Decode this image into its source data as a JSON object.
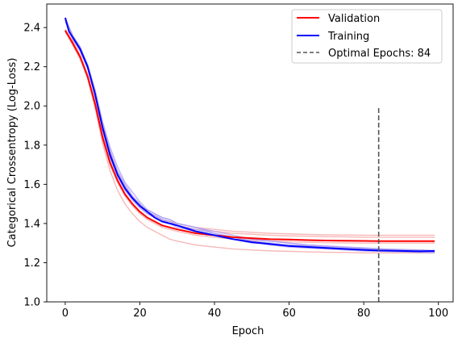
{
  "chart_data": {
    "type": "line",
    "xlabel": "Epoch",
    "ylabel": "Categorical Crossentropy (Log-Loss)",
    "xlim": [
      -4.95,
      103.95
    ],
    "ylim": [
      1.0,
      2.52
    ],
    "xticks": [
      0,
      20,
      40,
      60,
      80,
      100
    ],
    "yticks": [
      1.0,
      1.2,
      1.4,
      1.6,
      1.8,
      2.0,
      2.2,
      2.4
    ],
    "xtick_labels": [
      "0",
      "20",
      "40",
      "60",
      "80",
      "100"
    ],
    "ytick_labels": [
      "1.0",
      "1.2",
      "1.4",
      "1.6",
      "1.8",
      "2.0",
      "2.2",
      "2.4"
    ],
    "legend_position": "upper right",
    "colors": {
      "validation": "#ff0000",
      "training": "#0000ff",
      "validation_runs": "#f4a0a0",
      "training_runs": "#a898f0",
      "optimal": "#555555"
    },
    "series": [
      {
        "name": "Validation",
        "key": "validation",
        "x": [
          0,
          2,
          4,
          6,
          8,
          10,
          12,
          14,
          16,
          18,
          20,
          22,
          24,
          26,
          28,
          30,
          35,
          40,
          45,
          50,
          55,
          60,
          65,
          70,
          75,
          80,
          84,
          90,
          95,
          99
        ],
        "y": [
          2.385,
          2.32,
          2.25,
          2.15,
          2.01,
          1.84,
          1.71,
          1.62,
          1.55,
          1.5,
          1.46,
          1.43,
          1.41,
          1.39,
          1.38,
          1.37,
          1.35,
          1.34,
          1.33,
          1.325,
          1.32,
          1.318,
          1.315,
          1.313,
          1.312,
          1.311,
          1.31,
          1.31,
          1.31,
          1.31
        ]
      },
      {
        "name": "Training",
        "key": "training",
        "x": [
          0,
          1,
          2,
          4,
          6,
          8,
          10,
          12,
          14,
          16,
          18,
          20,
          22,
          24,
          26,
          28,
          30,
          35,
          40,
          45,
          50,
          55,
          60,
          65,
          70,
          75,
          80,
          84,
          90,
          95,
          99
        ],
        "y": [
          2.45,
          2.38,
          2.35,
          2.29,
          2.2,
          2.06,
          1.89,
          1.75,
          1.65,
          1.58,
          1.53,
          1.49,
          1.46,
          1.43,
          1.41,
          1.4,
          1.39,
          1.36,
          1.34,
          1.32,
          1.305,
          1.295,
          1.285,
          1.28,
          1.275,
          1.27,
          1.265,
          1.262,
          1.26,
          1.258,
          1.26
        ]
      },
      {
        "name": "Optimal Epochs: 84",
        "key": "optimal",
        "style": "dashed",
        "x": [
          84,
          84
        ],
        "y": [
          1.0,
          1.99
        ]
      }
    ],
    "individual_runs": {
      "validation": [
        {
          "x": [
            0,
            2,
            4,
            6,
            8,
            10,
            12,
            14,
            16,
            18,
            20,
            22,
            24,
            26,
            28,
            30,
            35,
            40,
            45,
            50,
            55,
            60,
            65,
            70,
            75,
            80,
            85,
            90,
            95,
            99
          ],
          "y": [
            2.39,
            2.33,
            2.25,
            2.14,
            1.99,
            1.81,
            1.67,
            1.57,
            1.5,
            1.45,
            1.41,
            1.38,
            1.36,
            1.34,
            1.32,
            1.31,
            1.29,
            1.28,
            1.27,
            1.265,
            1.26,
            1.258,
            1.255,
            1.253,
            1.252,
            1.25,
            1.25,
            1.25,
            1.25,
            1.25
          ]
        },
        {
          "x": [
            0,
            2,
            4,
            6,
            8,
            10,
            12,
            14,
            16,
            18,
            20,
            22,
            24,
            26,
            28,
            30,
            35,
            40,
            45,
            50,
            55,
            60,
            65,
            70,
            75,
            80,
            85,
            90,
            95,
            99
          ],
          "y": [
            2.38,
            2.32,
            2.24,
            2.15,
            2.02,
            1.86,
            1.73,
            1.64,
            1.57,
            1.52,
            1.48,
            1.45,
            1.43,
            1.41,
            1.4,
            1.39,
            1.37,
            1.36,
            1.35,
            1.345,
            1.34,
            1.337,
            1.335,
            1.333,
            1.332,
            1.33,
            1.33,
            1.33,
            1.33,
            1.33
          ]
        },
        {
          "x": [
            0,
            2,
            4,
            6,
            8,
            10,
            12,
            14,
            16,
            18,
            20,
            22,
            24,
            26,
            28,
            30,
            35,
            40,
            45,
            50,
            55,
            60,
            65,
            70,
            75,
            80,
            85,
            90,
            95,
            99
          ],
          "y": [
            2.38,
            2.31,
            2.24,
            2.14,
            2.0,
            1.83,
            1.7,
            1.61,
            1.54,
            1.49,
            1.45,
            1.42,
            1.4,
            1.38,
            1.37,
            1.36,
            1.34,
            1.33,
            1.32,
            1.315,
            1.31,
            1.307,
            1.304,
            1.302,
            1.301,
            1.3,
            1.3,
            1.3,
            1.3,
            1.3
          ]
        },
        {
          "x": [
            0,
            2,
            4,
            6,
            8,
            10,
            12,
            14,
            16,
            18,
            20,
            22,
            24,
            26,
            28,
            30,
            35,
            40,
            45,
            50,
            55,
            60,
            65,
            70,
            75,
            80,
            85,
            90,
            95,
            99
          ],
          "y": [
            2.39,
            2.33,
            2.26,
            2.16,
            2.03,
            1.87,
            1.74,
            1.65,
            1.58,
            1.53,
            1.49,
            1.46,
            1.44,
            1.42,
            1.41,
            1.4,
            1.38,
            1.37,
            1.36,
            1.355,
            1.35,
            1.347,
            1.344,
            1.342,
            1.341,
            1.34,
            1.34,
            1.34,
            1.34,
            1.34
          ]
        },
        {
          "x": [
            0,
            2,
            4,
            6,
            8,
            10,
            12,
            14,
            16,
            18,
            20,
            22,
            24,
            26,
            28,
            30,
            35,
            40,
            45,
            50,
            55,
            60,
            65,
            70,
            75,
            80,
            85,
            90,
            95,
            99
          ],
          "y": [
            2.38,
            2.32,
            2.25,
            2.15,
            2.01,
            1.84,
            1.71,
            1.62,
            1.55,
            1.5,
            1.46,
            1.43,
            1.41,
            1.39,
            1.38,
            1.37,
            1.35,
            1.34,
            1.33,
            1.325,
            1.32,
            1.317,
            1.314,
            1.312,
            1.311,
            1.31,
            1.31,
            1.31,
            1.31,
            1.31
          ]
        }
      ],
      "training": [
        {
          "x": [
            0,
            2,
            4,
            6,
            8,
            10,
            12,
            14,
            16,
            18,
            20,
            22,
            24,
            26,
            28,
            30,
            35,
            40,
            45,
            50,
            55,
            60,
            65,
            70,
            75,
            80,
            85,
            90,
            95,
            99
          ],
          "y": [
            2.44,
            2.34,
            2.28,
            2.19,
            2.05,
            1.9,
            1.77,
            1.67,
            1.6,
            1.54,
            1.5,
            1.46,
            1.44,
            1.42,
            1.41,
            1.39,
            1.37,
            1.35,
            1.33,
            1.31,
            1.3,
            1.29,
            1.285,
            1.28,
            1.275,
            1.27,
            1.265,
            1.26,
            1.26,
            1.255
          ]
        },
        {
          "x": [
            0,
            2,
            4,
            6,
            8,
            10,
            12,
            14,
            16,
            18,
            20,
            22,
            24,
            26,
            28,
            30,
            35,
            40,
            45,
            50,
            55,
            60,
            65,
            70,
            75,
            80,
            85,
            90,
            95,
            99
          ],
          "y": [
            2.45,
            2.36,
            2.3,
            2.21,
            2.08,
            1.92,
            1.79,
            1.69,
            1.61,
            1.56,
            1.51,
            1.47,
            1.45,
            1.43,
            1.42,
            1.4,
            1.38,
            1.35,
            1.33,
            1.32,
            1.31,
            1.3,
            1.29,
            1.285,
            1.28,
            1.275,
            1.27,
            1.265,
            1.265,
            1.26
          ]
        },
        {
          "x": [
            0,
            2,
            4,
            6,
            8,
            10,
            12,
            14,
            16,
            18,
            20,
            22,
            24,
            26,
            28,
            30,
            35,
            40,
            45,
            50,
            55,
            60,
            65,
            70,
            75,
            80,
            85,
            90,
            95,
            99
          ],
          "y": [
            2.43,
            2.35,
            2.29,
            2.2,
            2.06,
            1.88,
            1.74,
            1.64,
            1.57,
            1.52,
            1.48,
            1.45,
            1.43,
            1.41,
            1.4,
            1.38,
            1.36,
            1.34,
            1.32,
            1.305,
            1.29,
            1.28,
            1.275,
            1.27,
            1.265,
            1.26,
            1.258,
            1.255,
            1.252,
            1.25
          ]
        },
        {
          "x": [
            0,
            2,
            4,
            6,
            8,
            10,
            12,
            14,
            16,
            18,
            20,
            22,
            24,
            26,
            28,
            30,
            35,
            40,
            45,
            50,
            55,
            60,
            65,
            70,
            75,
            80,
            85,
            90,
            95,
            99
          ],
          "y": [
            2.44,
            2.35,
            2.28,
            2.2,
            2.07,
            1.91,
            1.77,
            1.66,
            1.59,
            1.53,
            1.49,
            1.46,
            1.44,
            1.42,
            1.4,
            1.39,
            1.36,
            1.34,
            1.32,
            1.3,
            1.295,
            1.285,
            1.28,
            1.275,
            1.27,
            1.265,
            1.262,
            1.26,
            1.258,
            1.255
          ]
        },
        {
          "x": [
            0,
            2,
            4,
            6,
            8,
            10,
            12,
            14,
            16,
            18,
            20,
            22,
            24,
            26,
            28,
            30,
            35,
            40,
            45,
            50,
            55,
            60,
            65,
            70,
            75,
            80,
            85,
            90,
            95,
            99
          ],
          "y": [
            2.44,
            2.36,
            2.3,
            2.21,
            2.08,
            1.9,
            1.76,
            1.65,
            1.58,
            1.53,
            1.49,
            1.47,
            1.45,
            1.43,
            1.42,
            1.4,
            1.38,
            1.36,
            1.34,
            1.32,
            1.31,
            1.3,
            1.29,
            1.285,
            1.28,
            1.275,
            1.27,
            1.268,
            1.265,
            1.262
          ]
        }
      ]
    }
  }
}
